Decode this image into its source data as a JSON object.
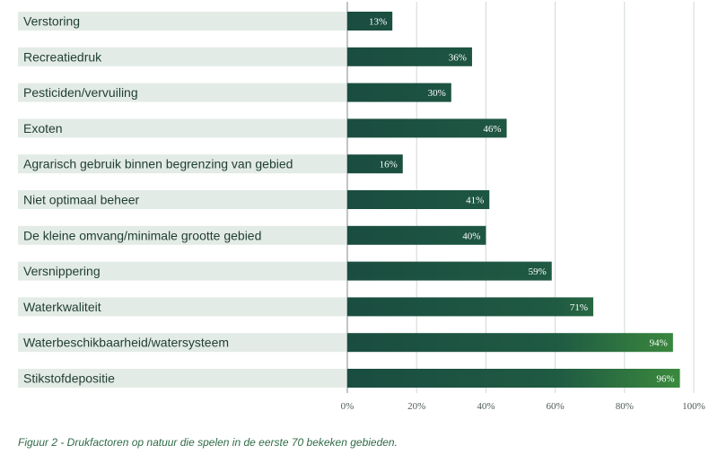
{
  "chart_data": {
    "type": "bar",
    "orientation": "horizontal",
    "categories": [
      "Verstoring",
      "Recreatiedruk",
      "Pesticiden/vervuiling",
      "Exoten",
      "Agrarisch gebruik binnen begrenzing van gebied",
      "Niet optimaal beheer",
      "De kleine omvang/minimale grootte gebied",
      "Versnippering",
      "Waterkwaliteit",
      "Waterbeschikbaarheid/watersysteem",
      "Stikstofdepositie"
    ],
    "values": [
      13,
      36,
      30,
      46,
      16,
      41,
      40,
      59,
      71,
      94,
      96
    ],
    "value_labels": [
      "13%",
      "36%",
      "30%",
      "46%",
      "16%",
      "41%",
      "40%",
      "59%",
      "71%",
      "94%",
      "96%"
    ],
    "xlim": [
      0,
      100
    ],
    "x_ticks": [
      0,
      20,
      40,
      60,
      80,
      100
    ],
    "x_tick_labels": [
      "0%",
      "20%",
      "40%",
      "60%",
      "80%",
      "100%"
    ],
    "grid": true,
    "colors": {
      "bar_dark": "#1a4d40",
      "bar_mid": "#1f5a43",
      "bar_light": "#3a8a3a",
      "label_band": "#e3ebe6"
    }
  },
  "caption": "Figuur 2 - Drukfactoren op natuur die spelen in de eerste 70 bekeken gebieden."
}
